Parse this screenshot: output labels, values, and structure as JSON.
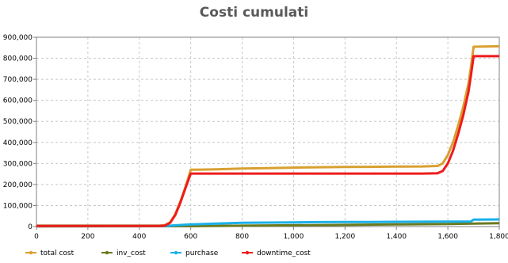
{
  "chart_data": {
    "type": "line",
    "title": "Costi cumulati",
    "xlabel": "",
    "ylabel": "",
    "xlim": [
      0,
      1800
    ],
    "ylim": [
      0,
      900000
    ],
    "x_ticks": [
      0,
      200,
      400,
      600,
      800,
      1000,
      1200,
      1400,
      1600,
      1800
    ],
    "x_tick_labels": [
      "0",
      "200",
      "400",
      "600",
      "800",
      "1,000",
      "1,200",
      "1,400",
      "1,600",
      "1,800"
    ],
    "y_ticks": [
      0,
      100000,
      200000,
      300000,
      400000,
      500000,
      600000,
      700000,
      800000,
      900000
    ],
    "y_tick_labels": [
      "0",
      "100,000",
      "200,000",
      "300,000",
      "400,000",
      "500,000",
      "600,000",
      "700,000",
      "800,000",
      "900,000"
    ],
    "grid": true,
    "legend_position": "bottom",
    "series": [
      {
        "name": "total cost",
        "color": "#d9a030",
        "x": [
          0,
          480,
          500,
          520,
          540,
          560,
          580,
          600,
          700,
          800,
          900,
          1000,
          1100,
          1200,
          1300,
          1400,
          1500,
          1560,
          1580,
          1600,
          1620,
          1640,
          1660,
          1680,
          1690,
          1700,
          1800
        ],
        "y": [
          5000,
          5000,
          7000,
          20000,
          60000,
          120000,
          190000,
          270000,
          272000,
          276000,
          278000,
          280000,
          282000,
          283000,
          284000,
          285000,
          286000,
          288000,
          300000,
          340000,
          400000,
          480000,
          570000,
          680000,
          760000,
          855000,
          857000
        ]
      },
      {
        "name": "inv_cost",
        "color": "#6b7a1e",
        "x": [
          0,
          600,
          800,
          1000,
          1200,
          1400,
          1600,
          1700,
          1800
        ],
        "y": [
          1000,
          2000,
          4000,
          6000,
          8000,
          10000,
          12000,
          14000,
          16000
        ]
      },
      {
        "name": "purchase",
        "color": "#1ab0e8",
        "x": [
          0,
          500,
          600,
          700,
          800,
          900,
          1000,
          1100,
          1200,
          1300,
          1400,
          1500,
          1600,
          1690,
          1700,
          1800
        ],
        "y": [
          3000,
          3000,
          10000,
          14000,
          18000,
          19000,
          20000,
          21000,
          21500,
          22000,
          22500,
          23000,
          23500,
          24000,
          33000,
          34000
        ]
      },
      {
        "name": "downtime_cost",
        "color": "#ee1c1c",
        "x": [
          0,
          480,
          500,
          520,
          540,
          560,
          580,
          600,
          700,
          800,
          900,
          1000,
          1100,
          1200,
          1300,
          1400,
          1500,
          1560,
          1580,
          1600,
          1620,
          1640,
          1660,
          1680,
          1690,
          1700,
          1800
        ],
        "y": [
          3000,
          3000,
          5000,
          18000,
          55000,
          115000,
          185000,
          252000,
          252000,
          252000,
          252000,
          252000,
          252000,
          252000,
          252000,
          252000,
          252000,
          253000,
          264000,
          300000,
          360000,
          440000,
          530000,
          640000,
          720000,
          810000,
          810000
        ]
      }
    ]
  }
}
